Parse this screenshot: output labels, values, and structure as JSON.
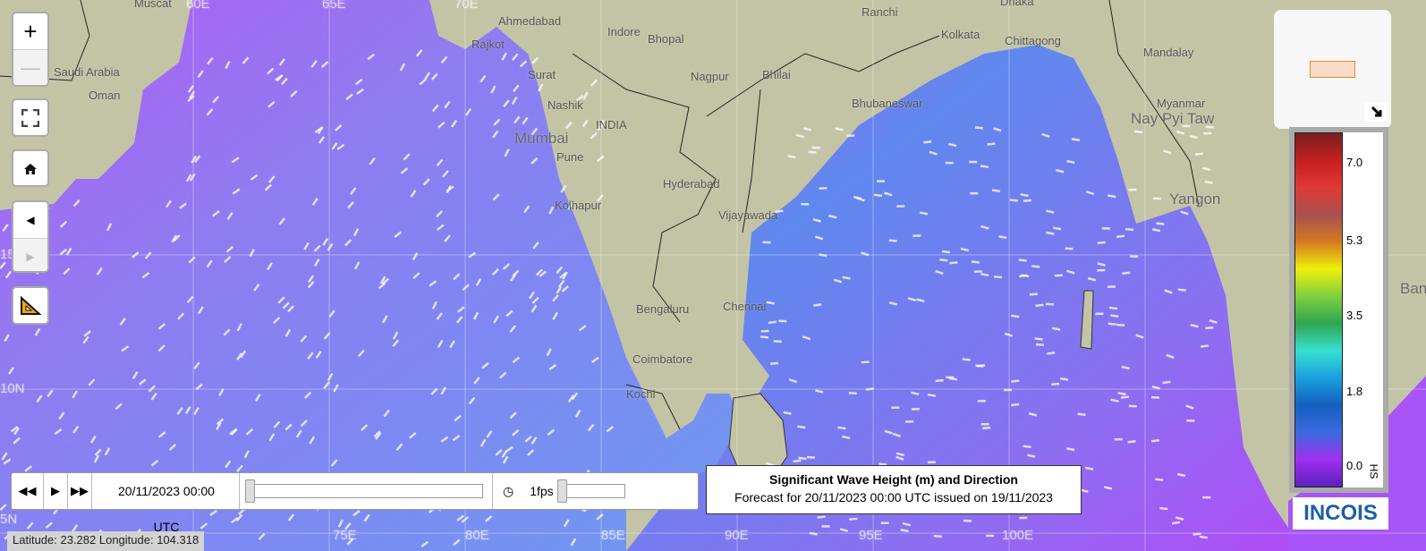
{
  "map": {
    "land_color": "#c3c4a6",
    "ocean_color": "#a855f7",
    "labels": [
      {
        "text": "Muscat",
        "cls": ""
      },
      {
        "text": "Oman",
        "cls": ""
      },
      {
        "text": "Saudi Arabia",
        "cls": ""
      },
      {
        "text": "Ahmedabad",
        "cls": ""
      },
      {
        "text": "Rajkot",
        "cls": ""
      },
      {
        "text": "Surat",
        "cls": ""
      },
      {
        "text": "Bhopal",
        "cls": ""
      },
      {
        "text": "Indore",
        "cls": ""
      },
      {
        "text": "Ranchi",
        "cls": ""
      },
      {
        "text": "Kolkata",
        "cls": ""
      },
      {
        "text": "Chittagong",
        "cls": ""
      },
      {
        "text": "Dhaka",
        "cls": ""
      },
      {
        "text": "Mandalay",
        "cls": ""
      },
      {
        "text": "Myanmar",
        "cls": ""
      },
      {
        "text": "Nay Pyi Taw",
        "cls": "big"
      },
      {
        "text": "Nagpur",
        "cls": ""
      },
      {
        "text": "Bhilai",
        "cls": ""
      },
      {
        "text": "Nashik",
        "cls": ""
      },
      {
        "text": "INDIA",
        "cls": ""
      },
      {
        "text": "Mumbai",
        "cls": "big"
      },
      {
        "text": "Pune",
        "cls": ""
      },
      {
        "text": "Bhubaneswar",
        "cls": ""
      },
      {
        "text": "Hyderabad",
        "cls": ""
      },
      {
        "text": "Kolhapur",
        "cls": ""
      },
      {
        "text": "Vijayawada",
        "cls": ""
      },
      {
        "text": "Bengaluru",
        "cls": ""
      },
      {
        "text": "Chennai",
        "cls": ""
      },
      {
        "text": "Coimbatore",
        "cls": ""
      },
      {
        "text": "Kochi",
        "cls": ""
      },
      {
        "text": "Yangon",
        "cls": "big"
      },
      {
        "text": "Ban",
        "cls": "big"
      }
    ],
    "grid_labels": [
      "60E",
      "65E",
      "70E",
      "75E",
      "80E",
      "85E",
      "90E",
      "95E",
      "100E",
      "15N",
      "10N",
      "5N"
    ]
  },
  "controls": {
    "zoom_in": "+",
    "zoom_out": "—",
    "prev": "◀",
    "next": "▶"
  },
  "player": {
    "datetime": "20/11/2023 00:00 UTC",
    "fps": "1fps",
    "time_progress": 0,
    "fps_level": 0
  },
  "legend": {
    "title": "Significant Wave Height (m) and Direction",
    "subtitle": "Forecast for 20/11/2023 00:00 UTC issued on 19/11/2023"
  },
  "colorbar": {
    "ticks": [
      "7.0",
      "5.3",
      "3.5",
      "1.8",
      "0.0"
    ],
    "variable": "HS",
    "colors": [
      "#7a1f1f",
      "#c42020",
      "#e03a36",
      "#a85050",
      "#d47a20",
      "#eef00a",
      "#7ed040",
      "#2fa650",
      "#36e0d0",
      "#1aa0e0",
      "#1560c0",
      "#3a6ae0",
      "#a030f0",
      "#5a20c0"
    ]
  },
  "status": {
    "latlon": "Latitude: 23.282 Longitude: 104.318"
  },
  "logo": {
    "text": "INCOIS"
  }
}
